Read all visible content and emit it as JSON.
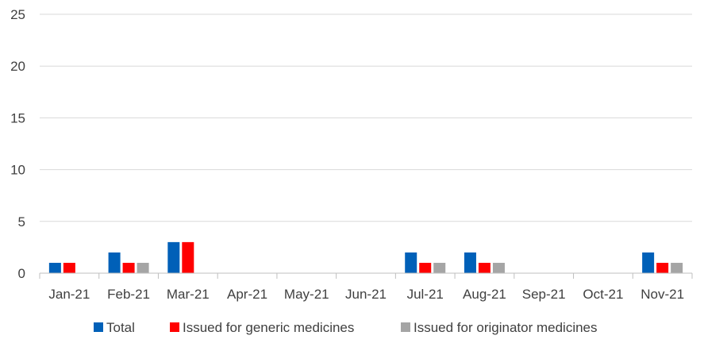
{
  "chart_data": {
    "type": "bar",
    "title": "",
    "xlabel": "",
    "ylabel": "",
    "ylim": [
      0,
      25
    ],
    "yticks": [
      0,
      5,
      10,
      15,
      20,
      25
    ],
    "grid": true,
    "legend_position": "bottom",
    "categories": [
      "Jan-21",
      "Feb-21",
      "Mar-21",
      "Apr-21",
      "May-21",
      "Jun-21",
      "Jul-21",
      "Aug-21",
      "Sep-21",
      "Oct-21",
      "Nov-21"
    ],
    "series": [
      {
        "name": "Total",
        "color": "#0060B8",
        "values": [
          1,
          2,
          3,
          0,
          0,
          0,
          2,
          2,
          0,
          0,
          2
        ]
      },
      {
        "name": "Issued for generic medicines",
        "color": "#FF0000",
        "values": [
          1,
          1,
          3,
          0,
          0,
          0,
          1,
          1,
          0,
          0,
          1
        ]
      },
      {
        "name": "Issued for originator medicines",
        "color": "#A5A5A5",
        "values": [
          0,
          1,
          0,
          0,
          0,
          0,
          1,
          1,
          0,
          0,
          1
        ]
      }
    ]
  },
  "colors": {
    "gridline": "#D9D9D9",
    "axis": "#BFBFBF",
    "text": "#404040"
  }
}
